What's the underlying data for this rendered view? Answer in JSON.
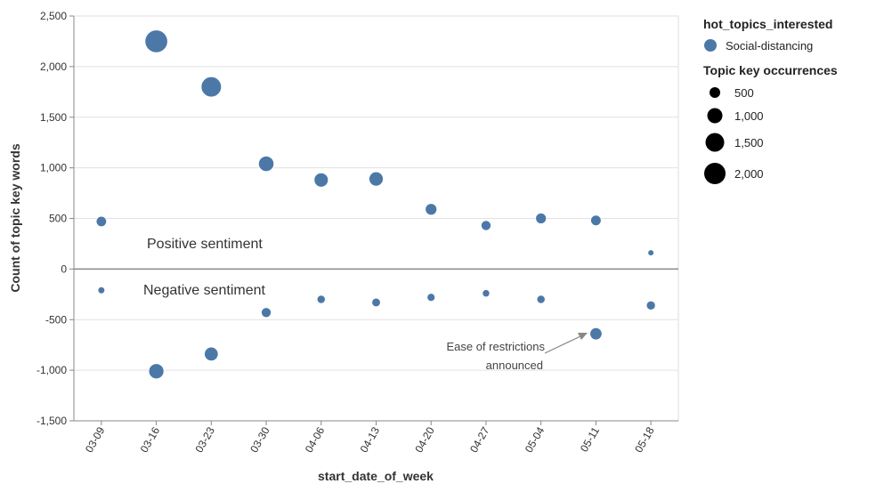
{
  "chart_data": {
    "type": "scatter",
    "xlabel": "start_date_of_week",
    "ylabel": "Count of topic key words",
    "ylim": [
      -1500,
      2500
    ],
    "yticks": [
      2500,
      2000,
      1500,
      1000,
      500,
      0,
      -500,
      -1000,
      -1500
    ],
    "ytick_labels": [
      "2,500",
      "2,000",
      "1,500",
      "1,000",
      "500",
      "0",
      "-500",
      "-1,000",
      "-1,500"
    ],
    "categories": [
      "03-09",
      "03-16",
      "03-23",
      "03-30",
      "04-06",
      "04-13",
      "04-20",
      "04-27",
      "05-04",
      "05-11",
      "05-18"
    ],
    "grid": true,
    "legend_position": "right",
    "color_legend": {
      "title": "hot_topics_interested",
      "items": [
        {
          "label": "Social-distancing",
          "color": "#4c78a8"
        }
      ]
    },
    "size_legend": {
      "title": "Topic key occurrences",
      "items": [
        {
          "label": "500",
          "value": 500
        },
        {
          "label": "1,000",
          "value": 1000
        },
        {
          "label": "1,500",
          "value": 1500
        },
        {
          "label": "2,000",
          "value": 2000
        }
      ]
    },
    "series": [
      {
        "name": "Social-distancing",
        "color": "#4c78a8",
        "positive": [
          470,
          2250,
          1800,
          1040,
          880,
          890,
          590,
          430,
          500,
          480,
          160
        ],
        "negative": [
          -210,
          -1010,
          -840,
          -430,
          -300,
          -330,
          -280,
          -240,
          -300,
          -640,
          -360
        ]
      }
    ],
    "annotations": {
      "positive": "Positive sentiment",
      "negative": "Negative sentiment",
      "restrictions_line1": "Ease of restrictions",
      "restrictions_line2": "announced"
    }
  }
}
